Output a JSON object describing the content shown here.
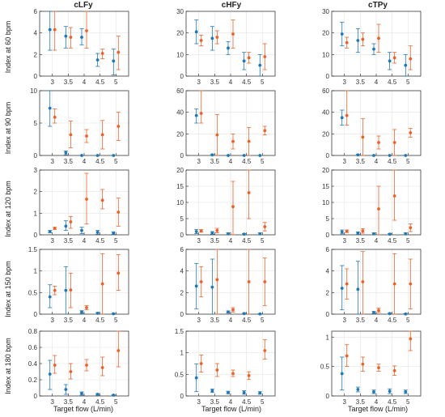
{
  "colors": {
    "blue": "#1f77b4",
    "orange": "#e8622a",
    "grid": "#e3e3e3",
    "axis": "#222222"
  },
  "chart_data": {
    "type": "scatter",
    "error_bars": true,
    "grid": true,
    "columns": [
      "cLFy",
      "cHFy",
      "cTPy"
    ],
    "row_labels": [
      "Index at 60 bpm",
      "Index at 90 bpm",
      "Index at 120 bpm",
      "Index at 150 bpm",
      "Index at 180 bpm"
    ],
    "xlabel": "Target flow (L/min)",
    "x": [
      3,
      3.5,
      4,
      4.5,
      5
    ],
    "xticks": [
      3,
      3.5,
      4,
      4.5,
      5
    ],
    "xlim": [
      2.6,
      5.4
    ],
    "panels": [
      {
        "row": 0,
        "col": 0,
        "ylim": [
          0,
          6
        ],
        "yticks": [
          0,
          2,
          4,
          6
        ],
        "series": [
          {
            "color": "blue",
            "values": [
              4.3,
              3.7,
              3.6,
              1.5,
              1.4
            ],
            "lower": [
              2.4,
              2.6,
              2.9,
              0.9,
              0.1
            ],
            "upper": [
              6.1,
              4.6,
              4.4,
              2.1,
              2.5
            ]
          },
          {
            "color": "orange",
            "values": [
              4.3,
              3.6,
              4.2,
              2.1,
              2.2
            ],
            "lower": [
              2.4,
              2.6,
              2.6,
              1.6,
              0.6
            ],
            "upper": [
              6.2,
              4.5,
              6.1,
              2.5,
              3.7
            ]
          }
        ]
      },
      {
        "row": 0,
        "col": 1,
        "ylim": [
          0,
          30
        ],
        "yticks": [
          0,
          10,
          20,
          30
        ],
        "series": [
          {
            "color": "blue",
            "values": [
              20.5,
              17.5,
              13,
              7,
              5
            ],
            "lower": [
              15,
              12,
              10,
              3,
              0
            ],
            "upper": [
              26,
              23,
              16,
              11,
              10
            ]
          },
          {
            "color": "orange",
            "values": [
              16.5,
              18,
              19.5,
              8.5,
              9
            ],
            "lower": [
              14,
              15,
              13,
              6,
              3
            ],
            "upper": [
              19,
              21,
              26,
              11,
              15
            ]
          }
        ]
      },
      {
        "row": 0,
        "col": 2,
        "ylim": [
          0,
          30
        ],
        "yticks": [
          0,
          10,
          20,
          30
        ],
        "series": [
          {
            "color": "blue",
            "values": [
              19.5,
              16.5,
              12.5,
              7,
              5
            ],
            "lower": [
              14,
              11,
              10,
              3,
              0
            ],
            "upper": [
              25,
              22,
              15,
              11,
              10
            ]
          },
          {
            "color": "orange",
            "values": [
              15.5,
              17,
              17.5,
              8.5,
              8
            ],
            "lower": [
              13,
              14,
              11,
              6,
              3
            ],
            "upper": [
              18,
              20,
              24,
              11,
              14
            ]
          }
        ]
      },
      {
        "row": 1,
        "col": 0,
        "ylim": [
          0,
          10
        ],
        "yticks": [
          0,
          5,
          10
        ],
        "series": [
          {
            "color": "blue",
            "values": [
              7.3,
              0.4,
              0,
              0,
              0
            ],
            "lower": [
              4.5,
              0.1,
              0,
              0,
              0
            ],
            "upper": [
              10.2,
              0.7,
              0,
              0,
              0
            ]
          },
          {
            "color": "orange",
            "values": [
              5.9,
              3.2,
              3.0,
              3.2,
              4.5
            ],
            "lower": [
              5.0,
              1.2,
              2.0,
              1.0,
              2.3
            ],
            "upper": [
              7.2,
              5.3,
              4.0,
              5.4,
              6.7
            ]
          }
        ]
      },
      {
        "row": 1,
        "col": 1,
        "ylim": [
          0,
          60
        ],
        "yticks": [
          0,
          20,
          40,
          60
        ],
        "series": [
          {
            "color": "blue",
            "values": [
              37,
              0.5,
              0,
              0,
              0
            ],
            "lower": [
              30,
              0,
              0,
              0,
              0
            ],
            "upper": [
              43,
              1,
              0,
              0,
              0
            ]
          },
          {
            "color": "orange",
            "values": [
              39,
              19,
              13,
              13,
              23
            ],
            "lower": [
              30,
              0,
              6,
              0,
              19
            ],
            "upper": [
              60,
              38,
              20,
              26,
              27
            ]
          }
        ]
      },
      {
        "row": 1,
        "col": 2,
        "ylim": [
          0,
          60
        ],
        "yticks": [
          0,
          20,
          40,
          60
        ],
        "series": [
          {
            "color": "blue",
            "values": [
              35,
              0.5,
              0,
              0,
              0
            ],
            "lower": [
              28,
              0,
              0,
              0,
              0
            ],
            "upper": [
              42,
              1,
              0,
              0,
              0
            ]
          },
          {
            "color": "orange",
            "values": [
              37,
              17,
              12,
              12,
              21
            ],
            "lower": [
              28,
              0,
              6,
              0,
              17
            ],
            "upper": [
              60,
              34,
              18,
              24,
              25
            ]
          }
        ]
      },
      {
        "row": 2,
        "col": 0,
        "ylim": [
          0,
          3
        ],
        "yticks": [
          0,
          1,
          2,
          3
        ],
        "series": [
          {
            "color": "blue",
            "values": [
              0.15,
              0.4,
              0.2,
              0.12,
              0.08
            ],
            "lower": [
              0.1,
              0.2,
              0.05,
              0.03,
              0.02
            ],
            "upper": [
              0.2,
              0.65,
              0.35,
              0.2,
              0.14
            ]
          },
          {
            "color": "orange",
            "values": [
              0.3,
              0.6,
              1.65,
              1.6,
              1.05
            ],
            "lower": [
              0.25,
              0.3,
              0.5,
              1.2,
              0.4
            ],
            "upper": [
              0.35,
              0.85,
              2.85,
              2.1,
              1.7
            ]
          }
        ]
      },
      {
        "row": 2,
        "col": 1,
        "ylim": [
          0,
          20
        ],
        "yticks": [
          0,
          5,
          10,
          15,
          20
        ],
        "series": [
          {
            "color": "blue",
            "values": [
              1,
              0.6,
              0.3,
              0.2,
              0.3
            ],
            "lower": [
              0.4,
              0.2,
              0,
              0,
              0
            ],
            "upper": [
              1.6,
              1,
              0.6,
              0.4,
              0.6
            ]
          },
          {
            "color": "orange",
            "values": [
              1.2,
              1.3,
              8.7,
              13,
              2.5
            ],
            "lower": [
              0.8,
              0.6,
              0,
              5,
              1.2
            ],
            "upper": [
              1.6,
              2,
              16.5,
              21,
              3.8
            ]
          }
        ]
      },
      {
        "row": 2,
        "col": 2,
        "ylim": [
          0,
          20
        ],
        "yticks": [
          0,
          5,
          10,
          15,
          20
        ],
        "series": [
          {
            "color": "blue",
            "values": [
              0.9,
              0.5,
              0.3,
              0.2,
              0.3
            ],
            "lower": [
              0.3,
              0.1,
              0,
              0,
              0
            ],
            "upper": [
              1.5,
              0.9,
              0.6,
              0.4,
              0.6
            ]
          },
          {
            "color": "orange",
            "values": [
              1.1,
              1.2,
              8,
              12,
              2.2
            ],
            "lower": [
              0.7,
              0.5,
              0,
              4.5,
              1
            ],
            "upper": [
              1.5,
              1.9,
              15,
              20,
              3.4
            ]
          }
        ]
      },
      {
        "row": 3,
        "col": 0,
        "ylim": [
          0,
          1.5
        ],
        "yticks": [
          0,
          0.5,
          1,
          1.5
        ],
        "series": [
          {
            "color": "blue",
            "values": [
              0.4,
              0.55,
              0.05,
              0.02,
              0.01
            ],
            "lower": [
              0.15,
              0,
              0.02,
              0,
              0
            ],
            "upper": [
              0.68,
              1.1,
              0.08,
              0.04,
              0.02
            ]
          },
          {
            "color": "orange",
            "values": [
              0.55,
              0.56,
              0.15,
              0.7,
              0.95
            ],
            "lower": [
              0.45,
              0.15,
              0.1,
              0,
              0.55
            ],
            "upper": [
              0.65,
              0.95,
              0.2,
              1.4,
              1.38
            ]
          }
        ]
      },
      {
        "row": 3,
        "col": 1,
        "ylim": [
          0,
          6
        ],
        "yticks": [
          0,
          2,
          4,
          6
        ],
        "series": [
          {
            "color": "blue",
            "values": [
              2.6,
              2.5,
              0.2,
              0.05,
              0.02
            ],
            "lower": [
              0.5,
              0,
              0.1,
              0,
              0
            ],
            "upper": [
              4.7,
              5.1,
              0.3,
              0.1,
              0.05
            ]
          },
          {
            "color": "orange",
            "values": [
              3.0,
              3.2,
              0.4,
              3.0,
              3.0
            ],
            "lower": [
              1.6,
              0,
              0.2,
              0,
              0.8
            ],
            "upper": [
              4.4,
              6.2,
              0.6,
              6.0,
              5.2
            ]
          }
        ]
      },
      {
        "row": 3,
        "col": 2,
        "ylim": [
          0,
          6
        ],
        "yticks": [
          0,
          2,
          4,
          6
        ],
        "series": [
          {
            "color": "blue",
            "values": [
              2.4,
              2.3,
              0.15,
              0.05,
              0.02
            ],
            "lower": [
              0.4,
              0,
              0.05,
              0,
              0
            ],
            "upper": [
              4.5,
              4.9,
              0.25,
              0.1,
              0.05
            ]
          },
          {
            "color": "orange",
            "values": [
              2.8,
              3.0,
              0.35,
              2.8,
              2.8
            ],
            "lower": [
              1.4,
              0,
              0.15,
              0,
              0.5
            ],
            "upper": [
              4.2,
              5.8,
              0.55,
              5.6,
              5.1
            ]
          }
        ]
      },
      {
        "row": 4,
        "col": 0,
        "ylim": [
          0,
          0.8
        ],
        "yticks": [
          0,
          0.2,
          0.4,
          0.6,
          0.8
        ],
        "series": [
          {
            "color": "blue",
            "values": [
              0.27,
              0.08,
              0.03,
              0.02,
              0.01
            ],
            "lower": [
              0.08,
              0.02,
              0.01,
              0.01,
              0.005
            ],
            "upper": [
              0.44,
              0.14,
              0.05,
              0.03,
              0.015
            ]
          },
          {
            "color": "orange",
            "values": [
              0.38,
              0.3,
              0.38,
              0.35,
              0.56
            ],
            "lower": [
              0.28,
              0.21,
              0.31,
              0.25,
              0.36
            ],
            "upper": [
              0.5,
              0.4,
              0.45,
              0.48,
              0.8
            ]
          }
        ]
      },
      {
        "row": 4,
        "col": 1,
        "ylim": [
          0,
          1.5
        ],
        "yticks": [
          0,
          0.5,
          1,
          1.5
        ],
        "series": [
          {
            "color": "blue",
            "values": [
              0.42,
              0.12,
              0.08,
              0.08,
              0.07
            ],
            "lower": [
              0.1,
              0.08,
              0.05,
              0.04,
              0.04
            ],
            "upper": [
              0.74,
              0.16,
              0.11,
              0.12,
              0.1
            ]
          },
          {
            "color": "orange",
            "values": [
              0.75,
              0.6,
              0.52,
              0.47,
              1.05
            ],
            "lower": [
              0.55,
              0.45,
              0.45,
              0.38,
              0.85
            ],
            "upper": [
              0.95,
              0.75,
              0.6,
              0.56,
              1.3
            ]
          }
        ]
      },
      {
        "row": 4,
        "col": 2,
        "ylim": [
          0,
          1.1
        ],
        "yticks": [
          0,
          0.5,
          1
        ],
        "series": [
          {
            "color": "blue",
            "values": [
              0.38,
              0.11,
              0.07,
              0.08,
              0.07
            ],
            "lower": [
              0.1,
              0.07,
              0.04,
              0.04,
              0.04
            ],
            "upper": [
              0.66,
              0.15,
              0.1,
              0.12,
              0.1
            ]
          },
          {
            "color": "orange",
            "values": [
              0.68,
              0.54,
              0.48,
              0.43,
              0.97
            ],
            "lower": [
              0.5,
              0.42,
              0.42,
              0.35,
              0.77
            ],
            "upper": [
              0.87,
              0.66,
              0.54,
              0.51,
              1.1
            ]
          }
        ]
      }
    ]
  }
}
